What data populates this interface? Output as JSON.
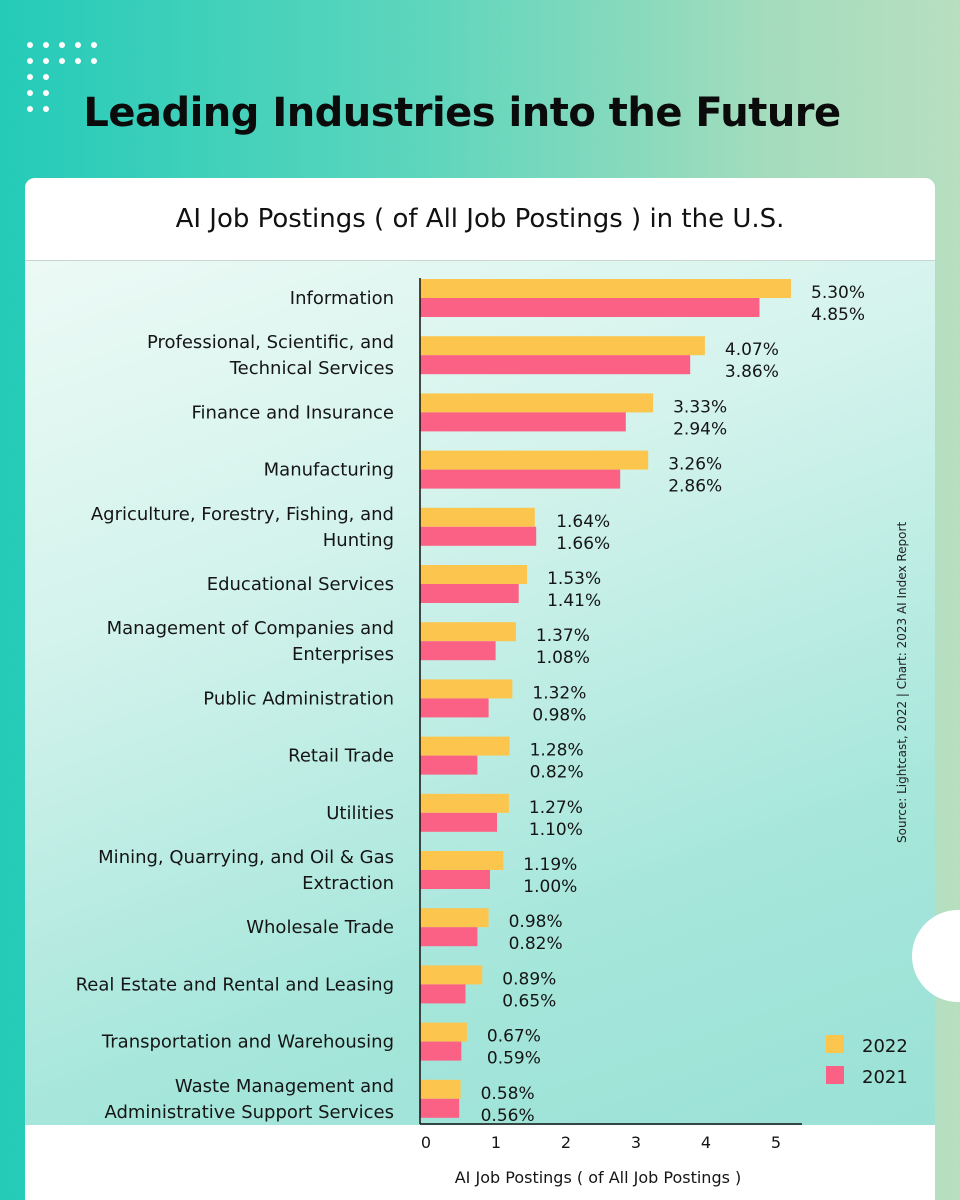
{
  "header": {
    "title": "Leading Industries into the Future"
  },
  "source_note": "Source: Lightcast, 2022 | Chart: 2023 AI Index Report",
  "colors": {
    "series_2022": "#fcc64e",
    "series_2021": "#fb6184"
  },
  "chart_data": {
    "type": "bar",
    "orientation": "horizontal",
    "title": "AI Job Postings ( of All Job Postings ) in the U.S.",
    "xlabel": "AI Job Postings ( of All Job Postings )",
    "ylabel": "",
    "xlim": [
      0,
      5.5
    ],
    "xticks": [
      0,
      1,
      2,
      3,
      4,
      5
    ],
    "grid": false,
    "legend": "bottom-right",
    "categories": [
      "Information",
      "Professional, Scientific, and Technical Services",
      "Finance and Insurance",
      "Manufacturing",
      "Agriculture, Forestry, Fishing, and Hunting",
      "Educational Services",
      "Management of  Companies and Enterprises",
      "Public Administration",
      "Retail Trade",
      "Utilities",
      "Mining, Quarrying, and Oil & Gas Extraction",
      "Wholesale Trade",
      "Real Estate and Rental and Leasing",
      "Transportation and Warehousing",
      "Waste Management and Administrative Support Services"
    ],
    "category_lines": [
      [
        "Information"
      ],
      [
        "Professional, Scientific, and",
        "Technical Services"
      ],
      [
        "Finance and Insurance"
      ],
      [
        "Manufacturing"
      ],
      [
        "Agriculture, Forestry, Fishing, and",
        "Hunting"
      ],
      [
        "Educational Services"
      ],
      [
        "Management of  Companies and",
        "Enterprises"
      ],
      [
        "Public Administration"
      ],
      [
        "Retail Trade"
      ],
      [
        "Utilities"
      ],
      [
        "Mining, Quarrying, and Oil & Gas",
        "Extraction"
      ],
      [
        "Wholesale Trade"
      ],
      [
        "Real Estate and Rental and Leasing"
      ],
      [
        "Transportation and Warehousing"
      ],
      [
        "Waste Management and",
        "Administrative Support Services"
      ]
    ],
    "series": [
      {
        "name": "2022",
        "values": [
          5.3,
          4.07,
          3.33,
          3.26,
          1.64,
          1.53,
          1.37,
          1.32,
          1.28,
          1.27,
          1.19,
          0.98,
          0.89,
          0.67,
          0.58
        ],
        "labels": [
          "5.30%",
          "4.07%",
          "3.33%",
          "3.26%",
          "1.64%",
          "1.53%",
          "1.37%",
          "1.32%",
          "1.28%",
          "1.27%",
          "1.19%",
          "0.98%",
          "0.89%",
          "0.67%",
          "0.58%"
        ]
      },
      {
        "name": "2021",
        "values": [
          4.85,
          3.86,
          2.94,
          2.86,
          1.66,
          1.41,
          1.08,
          0.98,
          0.82,
          1.1,
          1.0,
          0.82,
          0.65,
          0.59,
          0.56
        ],
        "labels": [
          "4.85%",
          "3.86%",
          "2.94%",
          "2.86%",
          "1.66%",
          "1.41%",
          "1.08%",
          "0.98%",
          "0.82%",
          "1.10%",
          "1.00%",
          "0.82%",
          "0.65%",
          "0.59%",
          "0.56%"
        ]
      }
    ]
  }
}
